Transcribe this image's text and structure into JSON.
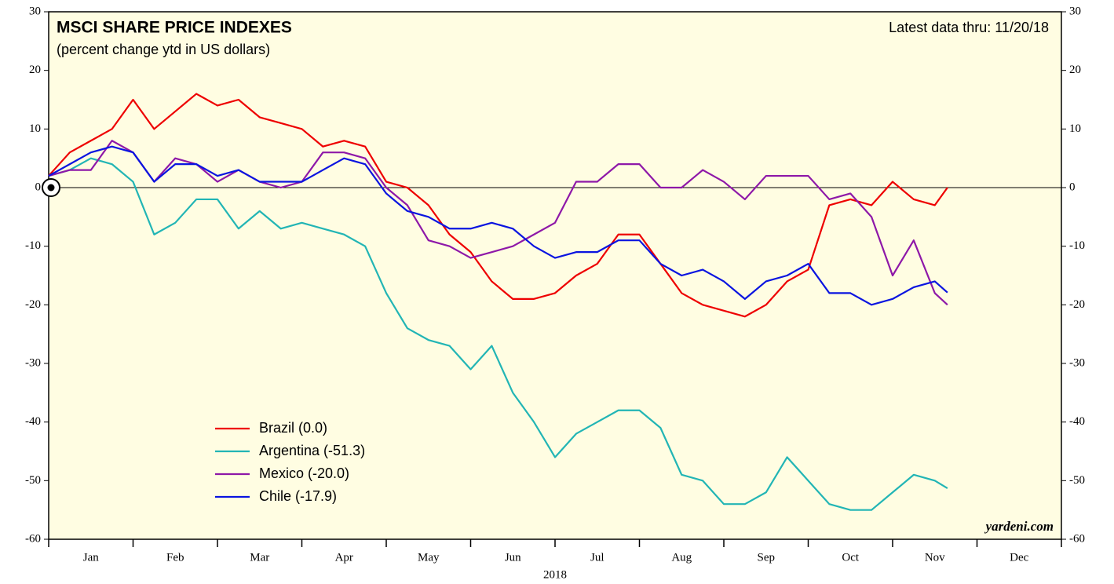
{
  "chart_data": {
    "type": "line",
    "title": "MSCI SHARE PRICE INDEXES",
    "subtitle": "(percent change ytd in US dollars)",
    "note": "Latest data thru: 11/20/18",
    "source": "yardeni.com",
    "xlabel": "2018",
    "categories": [
      "Jan",
      "Feb",
      "Mar",
      "Apr",
      "May",
      "Jun",
      "Jul",
      "Aug",
      "Sep",
      "Oct",
      "Nov",
      "Dec"
    ],
    "xlim": [
      0,
      12
    ],
    "xticks": [
      0,
      1,
      2,
      3,
      4,
      5,
      6,
      7,
      8,
      9,
      10,
      11,
      12
    ],
    "ylim": [
      -60,
      30
    ],
    "yticks": [
      -60,
      -50,
      -40,
      -30,
      -20,
      -10,
      0,
      10,
      20,
      30
    ],
    "legend": "lower-left",
    "x": [
      0,
      0.25,
      0.5,
      0.75,
      1,
      1.25,
      1.5,
      1.75,
      2,
      2.25,
      2.5,
      2.75,
      3,
      3.25,
      3.5,
      3.75,
      4,
      4.25,
      4.5,
      4.75,
      5,
      5.25,
      5.5,
      5.75,
      6,
      6.25,
      6.5,
      6.75,
      7,
      7.25,
      7.5,
      7.75,
      8,
      8.25,
      8.5,
      8.75,
      9,
      9.25,
      9.5,
      9.75,
      10,
      10.25,
      10.5,
      10.65
    ],
    "series": [
      {
        "name": "Brazil (0.0)",
        "color": "#ee0000",
        "values": [
          2,
          6,
          8,
          10,
          15,
          10,
          13,
          16,
          14,
          15,
          12,
          11,
          10,
          7,
          8,
          7,
          1,
          0,
          -3,
          -8,
          -11,
          -16,
          -19,
          -19,
          -18,
          -15,
          -13,
          -8,
          -8,
          -13,
          -18,
          -20,
          -21,
          -22,
          -20,
          -16,
          -14,
          -3,
          -2,
          -3,
          1,
          -2,
          -3,
          0
        ]
      },
      {
        "name": "Argentina (-51.3)",
        "color": "#22b5b5",
        "values": [
          2,
          3,
          5,
          4,
          1,
          -8,
          -6,
          -2,
          -2,
          -7,
          -4,
          -7,
          -6,
          -7,
          -8,
          -10,
          -18,
          -24,
          -26,
          -27,
          -31,
          -27,
          -35,
          -40,
          -46,
          -42,
          -40,
          -38,
          -38,
          -41,
          -49,
          -50,
          -54,
          -54,
          -52,
          -46,
          -50,
          -54,
          -55,
          -55,
          -52,
          -49,
          -50,
          -51.3
        ]
      },
      {
        "name": "Mexico (-20.0)",
        "color": "#8e18a8",
        "values": [
          2,
          3,
          3,
          8,
          6,
          1,
          5,
          4,
          1,
          3,
          1,
          0,
          1,
          6,
          6,
          5,
          0,
          -3,
          -9,
          -10,
          -12,
          -11,
          -10,
          -8,
          -6,
          1,
          1,
          4,
          4,
          0,
          0,
          3,
          1,
          -2,
          2,
          2,
          2,
          -2,
          -1,
          -5,
          -15,
          -9,
          -18,
          -20
        ]
      },
      {
        "name": "Chile (-17.9)",
        "color": "#0a14e0",
        "values": [
          2,
          4,
          6,
          7,
          6,
          1,
          4,
          4,
          2,
          3,
          1,
          1,
          1,
          3,
          5,
          4,
          -1,
          -4,
          -5,
          -7,
          -7,
          -6,
          -7,
          -10,
          -12,
          -11,
          -11,
          -9,
          -9,
          -13,
          -15,
          -14,
          -16,
          -19,
          -16,
          -15,
          -13,
          -18,
          -18,
          -20,
          -19,
          -17,
          -16,
          -17.9
        ]
      }
    ]
  }
}
